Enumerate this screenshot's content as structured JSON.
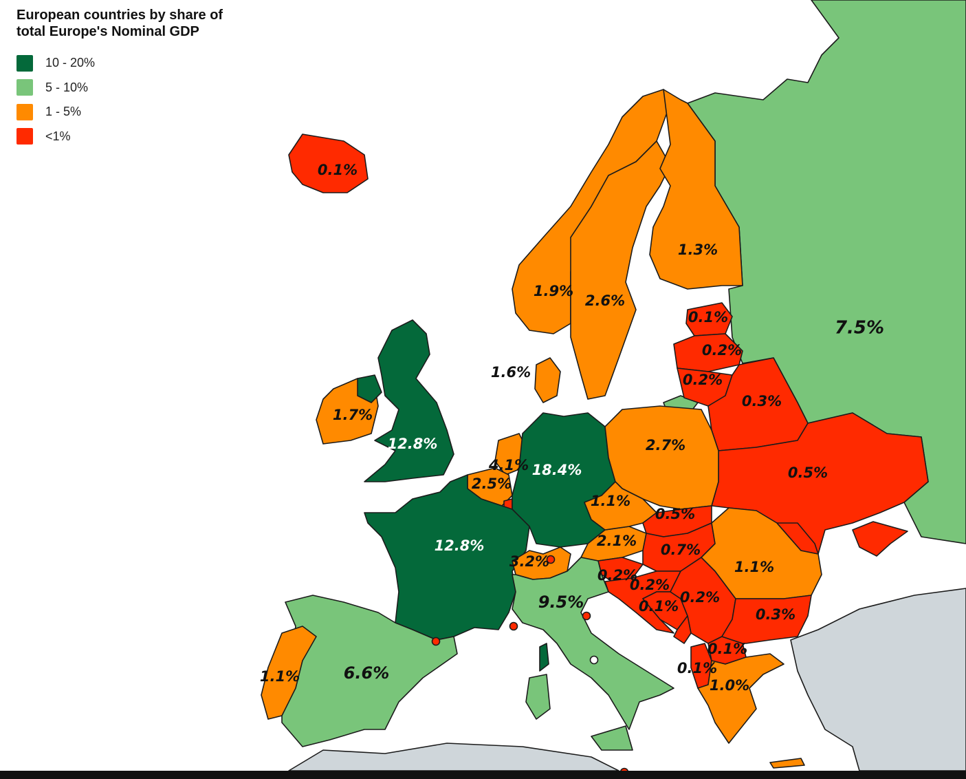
{
  "map": {
    "title": "European countries by share of total Europe's Nominal GDP",
    "legend": [
      {
        "label": "10 - 20%",
        "color": "#04693A"
      },
      {
        "label": "5 - 10%",
        "color": "#79C57A"
      },
      {
        "label": "1 - 5%",
        "color": "#FF8A00"
      },
      {
        "label": "<1%",
        "color": "#FF2A00"
      }
    ],
    "countries": [
      {
        "name": "Iceland",
        "share": "0.1%",
        "class": "<1%"
      },
      {
        "name": "Norway",
        "share": "1.9%",
        "class": "1 - 5%"
      },
      {
        "name": "Sweden",
        "share": "2.6%",
        "class": "1 - 5%"
      },
      {
        "name": "Finland",
        "share": "1.3%",
        "class": "1 - 5%"
      },
      {
        "name": "Denmark",
        "share": "1.6%",
        "class": "1 - 5%"
      },
      {
        "name": "Estonia",
        "share": "0.1%",
        "class": "<1%"
      },
      {
        "name": "Latvia",
        "share": "0.2%",
        "class": "<1%"
      },
      {
        "name": "Lithuania",
        "share": "0.2%",
        "class": "<1%"
      },
      {
        "name": "Belarus",
        "share": "0.3%",
        "class": "<1%"
      },
      {
        "name": "Russia",
        "share": "7.5%",
        "class": "5 - 10%"
      },
      {
        "name": "Ireland",
        "share": "1.7%",
        "class": "1 - 5%"
      },
      {
        "name": "United Kingdom",
        "share": "12.8%",
        "class": "10 - 20%"
      },
      {
        "name": "Netherlands",
        "share": "4.1%",
        "class": "1 - 5%"
      },
      {
        "name": "Belgium",
        "share": "2.5%",
        "class": "1 - 5%"
      },
      {
        "name": "Germany",
        "share": "18.4%",
        "class": "10 - 20%"
      },
      {
        "name": "Poland",
        "share": "2.7%",
        "class": "1 - 5%"
      },
      {
        "name": "Ukraine",
        "share": "0.5%",
        "class": "<1%"
      },
      {
        "name": "Czechia",
        "share": "1.1%",
        "class": "1 - 5%"
      },
      {
        "name": "Slovakia",
        "share": "0.5%",
        "class": "<1%"
      },
      {
        "name": "France",
        "share": "12.8%",
        "class": "10 - 20%"
      },
      {
        "name": "Switzerland",
        "share": "3.2%",
        "class": "1 - 5%"
      },
      {
        "name": "Austria",
        "share": "2.1%",
        "class": "1 - 5%"
      },
      {
        "name": "Hungary",
        "share": "0.7%",
        "class": "<1%"
      },
      {
        "name": "Romania",
        "share": "1.1%",
        "class": "1 - 5%"
      },
      {
        "name": "Slovenia",
        "share": "0.2%",
        "class": "<1%"
      },
      {
        "name": "Croatia",
        "share": "0.2%",
        "class": "<1%"
      },
      {
        "name": "Serbia",
        "share": "0.2%",
        "class": "<1%"
      },
      {
        "name": "Bosnia and Herzegovina",
        "share": "0.1%",
        "class": "<1%"
      },
      {
        "name": "Italy",
        "share": "9.5%",
        "class": "5 - 10%"
      },
      {
        "name": "Bulgaria",
        "share": "0.3%",
        "class": "<1%"
      },
      {
        "name": "North Macedonia",
        "share": "0.1%",
        "class": "<1%"
      },
      {
        "name": "Albania",
        "share": "0.1%",
        "class": "<1%"
      },
      {
        "name": "Greece",
        "share": "1.0%",
        "class": "1 - 5%"
      },
      {
        "name": "Spain",
        "share": "6.6%",
        "class": "5 - 10%"
      },
      {
        "name": "Portugal",
        "share": "1.1%",
        "class": "1 - 5%"
      }
    ]
  }
}
